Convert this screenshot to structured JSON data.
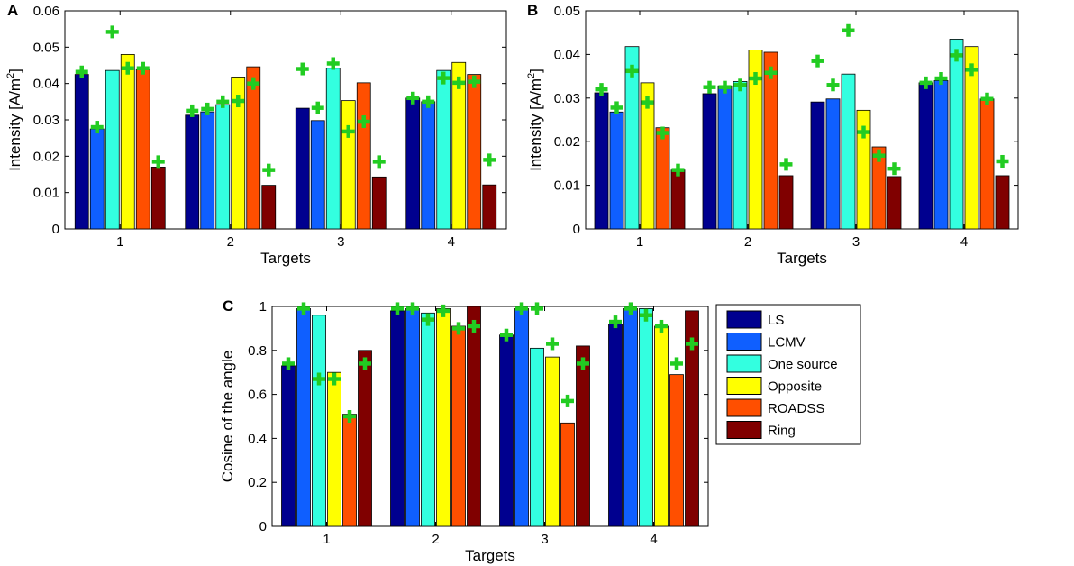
{
  "legend": [
    "LS",
    "LCMV",
    "One source",
    "Opposite",
    "ROADSS",
    "Ring"
  ],
  "colors": [
    "#00008f",
    "#0f5fff",
    "#33ffe0",
    "#ffff00",
    "#ff4f00",
    "#800000"
  ],
  "marker_color": "#22cc22",
  "chart_data": [
    {
      "type": "bar",
      "panel": "A",
      "categories": [
        "1",
        "2",
        "3",
        "4"
      ],
      "xlabel": "Targets",
      "ylabel_main": "Intensity [A/m",
      "ylabel_sup": "2",
      "ylabel_end": "]",
      "ylim": [
        0,
        0.06
      ],
      "yticks": [
        0,
        0.01,
        0.02,
        0.03,
        0.04,
        0.05,
        0.06
      ],
      "ytick_labels": [
        "0",
        "0.01",
        "0.02",
        "0.03",
        "0.04",
        "0.05",
        "0.06"
      ],
      "series": [
        {
          "name": "LS",
          "values": [
            0.0425,
            0.0313,
            0.0332,
            0.036
          ]
        },
        {
          "name": "LCMV",
          "values": [
            0.0275,
            0.0322,
            0.0298,
            0.035
          ]
        },
        {
          "name": "One source",
          "values": [
            0.0436,
            0.0342,
            0.0442,
            0.0436
          ]
        },
        {
          "name": "Opposite",
          "values": [
            0.048,
            0.0418,
            0.0353,
            0.0458
          ]
        },
        {
          "name": "ROADSS",
          "values": [
            0.0438,
            0.0446,
            0.0402,
            0.0425
          ]
        },
        {
          "name": "Ring",
          "values": [
            0.017,
            0.012,
            0.0143,
            0.0121
          ]
        }
      ],
      "markers": [
        {
          "name": "LS",
          "values": [
            0.0432,
            0.0325,
            0.044,
            0.036
          ]
        },
        {
          "name": "LCMV",
          "values": [
            0.028,
            0.033,
            0.0333,
            0.035
          ]
        },
        {
          "name": "One source",
          "values": [
            0.0542,
            0.035,
            0.0455,
            0.0415
          ]
        },
        {
          "name": "Opposite",
          "values": [
            0.0442,
            0.0352,
            0.0268,
            0.0402
          ]
        },
        {
          "name": "ROADSS",
          "values": [
            0.0442,
            0.04,
            0.0295,
            0.0405
          ]
        },
        {
          "name": "Ring",
          "values": [
            0.0185,
            0.0162,
            0.0185,
            0.019
          ]
        }
      ]
    },
    {
      "type": "bar",
      "panel": "B",
      "categories": [
        "1",
        "2",
        "3",
        "4"
      ],
      "xlabel": "Targets",
      "ylabel_main": "Intensity [A/m",
      "ylabel_sup": "2",
      "ylabel_end": "]",
      "ylim": [
        0,
        0.05
      ],
      "yticks": [
        0,
        0.01,
        0.02,
        0.03,
        0.04,
        0.05
      ],
      "ytick_labels": [
        "0",
        "0.01",
        "0.02",
        "0.03",
        "0.04",
        "0.05"
      ],
      "series": [
        {
          "name": "LS",
          "values": [
            0.0312,
            0.031,
            0.0291,
            0.0335
          ]
        },
        {
          "name": "LCMV",
          "values": [
            0.0268,
            0.0328,
            0.0298,
            0.034
          ]
        },
        {
          "name": "One source",
          "values": [
            0.0418,
            0.0338,
            0.0355,
            0.0435
          ]
        },
        {
          "name": "Opposite",
          "values": [
            0.0335,
            0.041,
            0.0272,
            0.0418
          ]
        },
        {
          "name": "ROADSS",
          "values": [
            0.0232,
            0.0405,
            0.0188,
            0.0298
          ]
        },
        {
          "name": "Ring",
          "values": [
            0.0135,
            0.0122,
            0.012,
            0.0122
          ]
        }
      ],
      "markers": [
        {
          "name": "LS",
          "values": [
            0.032,
            0.0325,
            0.0385,
            0.0335
          ]
        },
        {
          "name": "LCMV",
          "values": [
            0.0278,
            0.0325,
            0.033,
            0.0345
          ]
        },
        {
          "name": "One source",
          "values": [
            0.0362,
            0.033,
            0.0455,
            0.0398
          ]
        },
        {
          "name": "Opposite",
          "values": [
            0.029,
            0.0345,
            0.0222,
            0.0365
          ]
        },
        {
          "name": "ROADSS",
          "values": [
            0.022,
            0.0358,
            0.0168,
            0.0298
          ]
        },
        {
          "name": "Ring",
          "values": [
            0.0135,
            0.0148,
            0.0138,
            0.0155
          ]
        }
      ]
    },
    {
      "type": "bar",
      "panel": "C",
      "categories": [
        "1",
        "2",
        "3",
        "4"
      ],
      "xlabel": "Targets",
      "ylabel_main": "Cosine of the angle",
      "ylabel_sup": "",
      "ylabel_end": "",
      "ylim": [
        0,
        1
      ],
      "yticks": [
        0,
        0.2,
        0.4,
        0.6,
        0.8,
        1
      ],
      "ytick_labels": [
        "0",
        "0.2",
        "0.4",
        "0.6",
        "0.8",
        "1"
      ],
      "series": [
        {
          "name": "LS",
          "values": [
            0.73,
            0.98,
            0.87,
            0.92
          ]
        },
        {
          "name": "LCMV",
          "values": [
            0.99,
            0.99,
            0.99,
            0.99
          ]
        },
        {
          "name": "One source",
          "values": [
            0.96,
            0.97,
            0.81,
            0.99
          ]
        },
        {
          "name": "Opposite",
          "values": [
            0.7,
            0.99,
            0.77,
            0.91
          ]
        },
        {
          "name": "ROADSS",
          "values": [
            0.51,
            0.91,
            0.47,
            0.69
          ]
        },
        {
          "name": "Ring",
          "values": [
            0.8,
            1.0,
            0.82,
            0.98
          ]
        }
      ],
      "markers": [
        {
          "name": "LS",
          "values": [
            0.74,
            0.99,
            0.87,
            0.93
          ]
        },
        {
          "name": "LCMV",
          "values": [
            0.99,
            0.99,
            0.99,
            0.99
          ]
        },
        {
          "name": "One source",
          "values": [
            0.67,
            0.94,
            0.99,
            0.96
          ]
        },
        {
          "name": "Opposite",
          "values": [
            0.67,
            0.98,
            0.83,
            0.91
          ]
        },
        {
          "name": "ROADSS",
          "values": [
            0.5,
            0.9,
            0.57,
            0.74
          ]
        },
        {
          "name": "Ring",
          "values": [
            0.74,
            0.91,
            0.74,
            0.83
          ]
        }
      ]
    }
  ]
}
